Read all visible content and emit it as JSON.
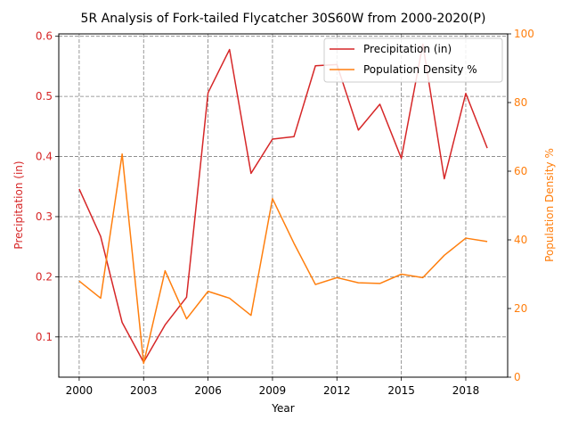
{
  "chart_data": {
    "type": "line",
    "title": "5R Analysis of Fork-tailed Flycatcher 30S60W from 2000-2020(P)",
    "xlabel": "Year",
    "ylabel_left": "Precipitation (in)",
    "ylabel_right": "Population Density %",
    "x": [
      2000,
      2001,
      2002,
      2003,
      2004,
      2005,
      2006,
      2007,
      2008,
      2009,
      2010,
      2011,
      2012,
      2013,
      2014,
      2015,
      2016,
      2017,
      2018,
      2019
    ],
    "x_ticks": [
      2000,
      2003,
      2006,
      2009,
      2012,
      2015,
      2018
    ],
    "xlim": [
      1999.05,
      2019.95
    ],
    "ylim_left": [
      0.033,
      0.604
    ],
    "y_ticks_left": [
      0.1,
      0.2,
      0.3,
      0.4,
      0.5,
      0.6
    ],
    "ylim_right": [
      0,
      100
    ],
    "y_ticks_right": [
      0,
      20,
      40,
      60,
      80,
      100
    ],
    "grid": true,
    "legend_position": "top-right",
    "series": [
      {
        "name": "Precipitation (in)",
        "axis": "left",
        "color": "#d62728",
        "values": [
          0.346,
          0.267,
          0.124,
          0.058,
          0.12,
          0.166,
          0.506,
          0.578,
          0.372,
          0.429,
          0.433,
          0.551,
          0.553,
          0.444,
          0.487,
          0.397,
          0.587,
          0.363,
          0.505,
          0.414
        ]
      },
      {
        "name": "Population Density %",
        "axis": "right",
        "color": "#ff7f0e",
        "values": [
          28,
          23,
          65,
          4,
          31,
          17,
          25,
          23,
          18,
          52,
          39,
          27,
          29,
          27.5,
          27.3,
          30,
          29,
          35.5,
          40.5,
          39.5
        ]
      }
    ]
  },
  "colors": {
    "left_axis": "#d62728",
    "right_axis": "#ff7f0e",
    "grid": "#808080"
  }
}
